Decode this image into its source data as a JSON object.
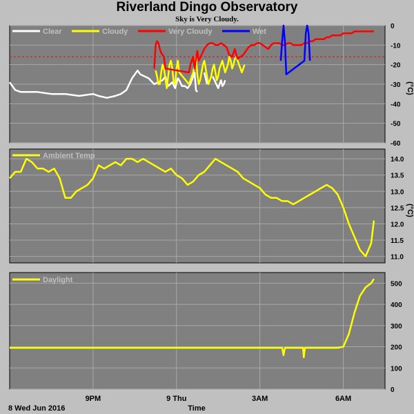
{
  "page": {
    "title": "Riverland Dingo Observatory",
    "subtitle": "Sky is Very Cloudy.",
    "date_label": "8 Wed Jun 2016",
    "time_label": "Time",
    "x_ticks": [
      "9PM",
      "9 Thu",
      "3AM",
      "6AM"
    ]
  },
  "colors": {
    "background": "#c0c0c0",
    "plot_bg": "#808080",
    "grid": "#a8a8a8",
    "clear": "#ffffff",
    "cloudy": "#ffff00",
    "very_cloudy": "#ff0000",
    "wet": "#0000ff",
    "threshold": "#ff0000",
    "temp": "#ffff00",
    "daylight": "#ffff00",
    "legend_text": "#c0c0c0"
  },
  "chart_data": [
    {
      "type": "line",
      "title": "",
      "ylabel": "(°C)",
      "ylim": [
        -60,
        0
      ],
      "yticks": [
        0,
        -10,
        -20,
        -30,
        -40,
        -50,
        -60
      ],
      "threshold": -16,
      "legend": [
        "Clear",
        "Cloudy",
        "Very Cloudy",
        "Wet"
      ],
      "series": [
        {
          "name": "Clear",
          "color_key": "clear",
          "x": [
            0,
            0.2,
            0.4,
            0.7,
            1,
            1.5,
            2,
            2.5,
            3,
            3.2,
            3.5,
            3.8,
            4,
            4.2,
            4.4,
            4.6,
            4.7,
            5,
            5.2,
            5.5,
            5.6,
            5.7,
            5.85,
            5.95,
            6.05,
            6.1,
            6.2,
            6.3,
            6.4,
            6.5,
            6.6,
            6.65,
            6.7,
            6.75,
            6.85,
            7.0,
            7.1,
            7.2,
            7.3,
            7.4,
            7.5,
            7.55,
            7.6,
            7.65,
            7.7,
            7.75
          ],
          "y": [
            -29,
            -33,
            -34,
            -34,
            -34,
            -35,
            -35,
            -36,
            -35,
            -36,
            -37,
            -36,
            -35,
            -33,
            -27,
            -23,
            -25,
            -27,
            -30,
            -28,
            -26,
            -31,
            -29,
            -32,
            -27,
            -28,
            -31,
            -31,
            -32,
            -30,
            -26,
            -24,
            -33,
            -34,
            null,
            -24,
            -30,
            null,
            -26,
            -29,
            -32,
            -30,
            -28,
            -31,
            -30,
            -28
          ]
        },
        {
          "name": "Cloudy",
          "color_key": "cloudy",
          "x": [
            5.25,
            5.3,
            5.35,
            5.4,
            5.45,
            5.5,
            5.55,
            5.62,
            5.65,
            5.7,
            5.75,
            5.8,
            5.85,
            5.9,
            5.95,
            6.0,
            6.05,
            6.1,
            6.45,
            6.5,
            6.55,
            6.6,
            6.65,
            6.7,
            6.75,
            6.8,
            6.85,
            6.9,
            6.95,
            7.0,
            7.05,
            7.1,
            7.15,
            7.2,
            7.25,
            7.3,
            7.35,
            7.4,
            7.45,
            7.5,
            7.55,
            7.6,
            7.65,
            7.7,
            7.75,
            7.8,
            7.85,
            7.9,
            7.95,
            8.0,
            8.05,
            8.1,
            8.15,
            8.2,
            8.25,
            8.3,
            8.35,
            8.4,
            8.45
          ],
          "y": [
            -23,
            -26,
            -30,
            -30,
            -24,
            -20,
            -22,
            -29,
            -32,
            -26,
            -20,
            -18,
            -22,
            -29,
            -30,
            -22,
            -18,
            -24,
            -30,
            -28,
            -26,
            -24,
            -20,
            -16,
            -25,
            -30,
            -28,
            -24,
            -20,
            -18,
            -22,
            -26,
            -30,
            -28,
            -26,
            -22,
            -20,
            -24,
            -28,
            -26,
            -22,
            -20,
            -18,
            -21,
            -24,
            -22,
            -20,
            -16,
            -18,
            -22,
            -20,
            -17,
            -16,
            -18,
            -20,
            -22,
            -24,
            -22,
            -20
          ]
        },
        {
          "name": "Very Cloudy",
          "color_key": "very_cloudy",
          "x": [
            5.2,
            5.25,
            5.3,
            5.35,
            5.4,
            5.45,
            5.5,
            5.55,
            5.6,
            6.45,
            6.5,
            6.55,
            6.6,
            6.65,
            6.7,
            6.75,
            6.8,
            6.9,
            7.0,
            7.1,
            7.2,
            7.3,
            7.4,
            7.5,
            7.6,
            7.7,
            7.8,
            7.85,
            7.9,
            8.0,
            8.05,
            8.1,
            8.15,
            8.2,
            8.3,
            8.4,
            8.5,
            8.6,
            8.7,
            8.8,
            8.9,
            9.0,
            9.1,
            9.2,
            9.3,
            9.4,
            9.5,
            9.6,
            9.7,
            9.8,
            9.9,
            10.0,
            10.1,
            10.2,
            10.3,
            10.4,
            10.5,
            10.6,
            10.7,
            10.8,
            10.9,
            11.0,
            11.1,
            11.2,
            11.3,
            11.4,
            11.5,
            11.6,
            11.7,
            11.8,
            11.9,
            12.0,
            12.1,
            12.2,
            12.3,
            12.4,
            12.5,
            12.6,
            12.7,
            12.8,
            12.9,
            13.0,
            13.1
          ],
          "y": [
            -22,
            -10,
            -8,
            -9,
            -12,
            -14,
            -15,
            -16,
            -22,
            -24,
            -20,
            -18,
            -16,
            -22,
            -17,
            -13,
            -18,
            -15,
            -12,
            -10,
            -9,
            -9,
            -10,
            -10,
            -9,
            -10,
            -11,
            -13,
            -15,
            -16,
            -14,
            -12,
            -15,
            -17,
            -16,
            -15,
            -13,
            -11,
            -10,
            -10,
            -9,
            -9,
            -10,
            -11,
            -12,
            -10,
            -9,
            -9,
            -9,
            -10,
            -10,
            -9,
            -9,
            -10,
            -10,
            -10,
            -10,
            -9,
            -9,
            -8,
            -8,
            -7,
            -7,
            -7,
            -7,
            -6,
            -6,
            -5,
            -5,
            -5,
            -5,
            -4,
            -4,
            -4,
            -4,
            -3,
            -3,
            -3,
            -3,
            -3,
            -3,
            -3,
            -3
          ]
        },
        {
          "name": "Wet",
          "color_key": "wet",
          "x": [
            9.75,
            9.8,
            9.85,
            9.9,
            9.95,
            10.6,
            10.65,
            10.7,
            10.75,
            10.8
          ],
          "y": [
            -18,
            -8,
            0,
            -8,
            -25,
            -18,
            -4,
            0,
            -4,
            -18
          ]
        }
      ]
    },
    {
      "type": "line",
      "title": "",
      "ylabel": "(°C)",
      "ylim": [
        10.8,
        14.3
      ],
      "yticks": [
        11.0,
        11.5,
        12.0,
        12.5,
        13.0,
        13.5,
        14.0
      ],
      "series": [
        {
          "name": "Ambient Temp",
          "color_key": "temp",
          "x": [
            0,
            0.2,
            0.4,
            0.6,
            0.8,
            1.0,
            1.2,
            1.4,
            1.6,
            1.8,
            2.0,
            2.2,
            2.4,
            2.6,
            2.8,
            3.0,
            3.2,
            3.4,
            3.6,
            3.8,
            4.0,
            4.2,
            4.4,
            4.6,
            4.8,
            5.0,
            5.2,
            5.4,
            5.6,
            5.8,
            6.0,
            6.2,
            6.4,
            6.6,
            6.8,
            7.0,
            7.2,
            7.4,
            7.6,
            7.8,
            8.0,
            8.2,
            8.4,
            8.6,
            8.8,
            9.0,
            9.2,
            9.4,
            9.6,
            9.8,
            10.0,
            10.2,
            10.4,
            10.6,
            10.8,
            11.0,
            11.2,
            11.4,
            11.6,
            11.8,
            12.0,
            12.2,
            12.4,
            12.6,
            12.8,
            13.0,
            13.1
          ],
          "y": [
            13.4,
            13.6,
            13.6,
            14.0,
            13.9,
            13.7,
            13.7,
            13.6,
            13.7,
            13.4,
            12.8,
            12.8,
            13.0,
            13.1,
            13.2,
            13.4,
            13.8,
            13.7,
            13.8,
            13.9,
            13.8,
            14.0,
            14.0,
            13.9,
            14.0,
            13.9,
            13.8,
            13.7,
            13.6,
            13.7,
            13.5,
            13.4,
            13.2,
            13.3,
            13.5,
            13.6,
            13.8,
            14.0,
            13.9,
            13.8,
            13.7,
            13.6,
            13.4,
            13.3,
            13.2,
            13.1,
            12.9,
            12.8,
            12.8,
            12.7,
            12.7,
            12.6,
            12.7,
            12.8,
            12.9,
            13.0,
            13.1,
            13.2,
            13.1,
            12.9,
            12.5,
            12.0,
            11.6,
            11.2,
            11.0,
            11.4,
            12.1
          ]
        }
      ]
    },
    {
      "type": "line",
      "title": "",
      "ylabel": "",
      "ylim": [
        0,
        550
      ],
      "yticks": [
        0,
        100,
        200,
        300,
        400,
        500
      ],
      "series": [
        {
          "name": "Daylight",
          "color_key": "daylight",
          "x": [
            0,
            0.5,
            1,
            1.5,
            2,
            2.5,
            3,
            3.5,
            4,
            4.5,
            5,
            5.5,
            6,
            6.5,
            7,
            7.5,
            8,
            8.5,
            9,
            9.5,
            9.8,
            9.85,
            9.9,
            10.2,
            10.55,
            10.58,
            10.62,
            10.65,
            11,
            11.5,
            11.8,
            12.0,
            12.2,
            12.4,
            12.6,
            12.8,
            13.0,
            13.05,
            13.1
          ],
          "y": [
            195,
            195,
            195,
            195,
            195,
            195,
            195,
            195,
            195,
            195,
            195,
            195,
            195,
            195,
            195,
            195,
            195,
            195,
            195,
            195,
            195,
            160,
            195,
            195,
            195,
            150,
            195,
            195,
            195,
            195,
            195,
            200,
            260,
            360,
            440,
            480,
            500,
            510,
            520
          ]
        }
      ]
    }
  ]
}
